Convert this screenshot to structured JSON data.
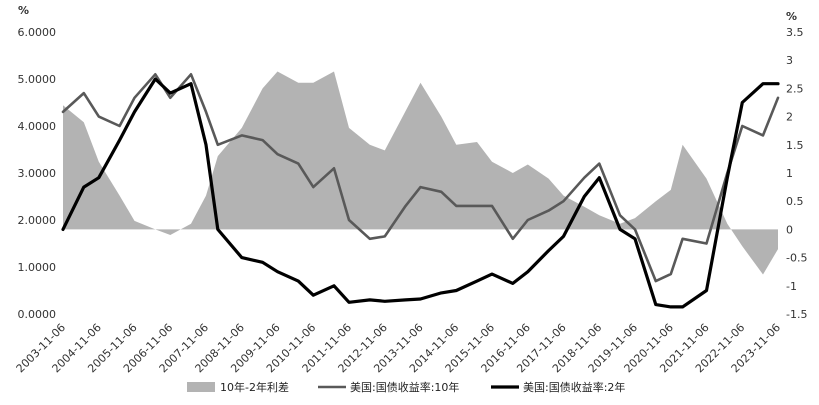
{
  "chart_data": {
    "type": "line",
    "title": "",
    "left_axis": {
      "unit": "%",
      "ylim": [
        0,
        6
      ],
      "ticks": [
        "0.0000",
        "1.0000",
        "2.0000",
        "3.0000",
        "4.0000",
        "5.0000",
        "6.0000"
      ]
    },
    "right_axis": {
      "unit": "%",
      "ylim": [
        -1.5,
        3.5
      ],
      "ticks": [
        "-1.5",
        "-1",
        "-0.5",
        "0",
        "0.5",
        "1",
        "1.5",
        "2",
        "2.5",
        "3",
        "3.5"
      ]
    },
    "x_ticks": [
      "2003-11-06",
      "2004-11-06",
      "2005-11-06",
      "2006-11-06",
      "2007-11-06",
      "2008-11-06",
      "2009-11-06",
      "2010-11-06",
      "2011-11-06",
      "2012-11-06",
      "2013-11-06",
      "2014-11-06",
      "2015-11-06",
      "2016-11-06",
      "2017-11-06",
      "2018-11-06",
      "2019-11-06",
      "2020-11-06",
      "2021-11-06",
      "2022-11-06",
      "2023-11-06"
    ],
    "x_range": [
      "2003-11-06",
      "2023-11-06"
    ],
    "legend_position": "bottom",
    "series": [
      {
        "name": "10年-2年利差",
        "type": "area",
        "axis": "right",
        "color": "#b3b3b3",
        "x": [
          "2003-11-06",
          "2004-06-06",
          "2004-11-06",
          "2005-06-06",
          "2005-11-06",
          "2006-06-06",
          "2006-11-06",
          "2007-06-06",
          "2007-11-06",
          "2008-03-06",
          "2008-11-06",
          "2009-06-06",
          "2009-11-06",
          "2010-06-06",
          "2010-11-06",
          "2011-06-06",
          "2011-11-06",
          "2012-06-06",
          "2012-11-06",
          "2013-06-06",
          "2013-11-06",
          "2014-06-06",
          "2014-11-06",
          "2015-06-06",
          "2015-11-06",
          "2016-06-06",
          "2016-11-06",
          "2017-06-06",
          "2017-11-06",
          "2018-06-06",
          "2018-11-06",
          "2019-06-06",
          "2019-11-06",
          "2020-06-06",
          "2020-11-06",
          "2021-03-06",
          "2021-11-06",
          "2022-06-06",
          "2022-11-06",
          "2023-06-06",
          "2023-11-06"
        ],
        "y": [
          2.2,
          1.9,
          1.2,
          0.6,
          0.15,
          0,
          -0.1,
          0.1,
          0.6,
          1.3,
          1.8,
          2.5,
          2.8,
          2.6,
          2.6,
          2.8,
          1.8,
          1.5,
          1.4,
          2.1,
          2.6,
          2.0,
          1.5,
          1.55,
          1.2,
          1.0,
          1.15,
          0.9,
          0.6,
          0.4,
          0.25,
          0.1,
          0.2,
          0.5,
          0.7,
          1.5,
          0.9,
          0.1,
          -0.3,
          -0.8,
          -0.35
        ]
      },
      {
        "name": "美国:国债收益率:10年",
        "type": "line",
        "axis": "left",
        "color": "#595959",
        "x": [
          "2003-11-06",
          "2004-06-06",
          "2004-11-06",
          "2005-06-06",
          "2005-11-06",
          "2006-06-06",
          "2006-11-06",
          "2007-06-06",
          "2007-11-06",
          "2008-03-06",
          "2008-11-06",
          "2009-06-06",
          "2009-11-06",
          "2010-06-06",
          "2010-11-06",
          "2011-06-06",
          "2011-11-06",
          "2012-06-06",
          "2012-11-06",
          "2013-06-06",
          "2013-11-06",
          "2014-06-06",
          "2014-11-06",
          "2015-06-06",
          "2015-11-06",
          "2016-06-06",
          "2016-11-06",
          "2017-06-06",
          "2017-11-06",
          "2018-06-06",
          "2018-11-06",
          "2019-06-06",
          "2019-11-06",
          "2020-06-06",
          "2020-11-06",
          "2021-03-06",
          "2021-11-06",
          "2022-06-06",
          "2022-11-06",
          "2023-06-06",
          "2023-11-06"
        ],
        "y": [
          4.3,
          4.7,
          4.2,
          4.0,
          4.6,
          5.1,
          4.6,
          5.1,
          4.3,
          3.6,
          3.8,
          3.7,
          3.4,
          3.2,
          2.7,
          3.1,
          2.0,
          1.6,
          1.65,
          2.3,
          2.7,
          2.6,
          2.3,
          2.3,
          2.3,
          1.6,
          2.0,
          2.2,
          2.4,
          2.9,
          3.2,
          2.1,
          1.8,
          0.7,
          0.85,
          1.6,
          1.5,
          3.0,
          4.0,
          3.8,
          4.6
        ]
      },
      {
        "name": "美国:国债收益率:2年",
        "type": "line",
        "axis": "left",
        "color": "#000000",
        "x": [
          "2003-11-06",
          "2004-06-06",
          "2004-11-06",
          "2005-06-06",
          "2005-11-06",
          "2006-06-06",
          "2006-11-06",
          "2007-06-06",
          "2007-11-06",
          "2008-03-06",
          "2008-11-06",
          "2009-06-06",
          "2009-11-06",
          "2010-06-06",
          "2010-11-06",
          "2011-06-06",
          "2011-11-06",
          "2012-06-06",
          "2012-11-06",
          "2013-06-06",
          "2013-11-06",
          "2014-06-06",
          "2014-11-06",
          "2015-06-06",
          "2015-11-06",
          "2016-06-06",
          "2016-11-06",
          "2017-06-06",
          "2017-11-06",
          "2018-06-06",
          "2018-11-06",
          "2019-06-06",
          "2019-11-06",
          "2020-06-06",
          "2020-11-06",
          "2021-03-06",
          "2021-11-06",
          "2022-06-06",
          "2022-11-06",
          "2023-06-06",
          "2023-11-06"
        ],
        "y": [
          1.8,
          2.7,
          2.9,
          3.7,
          4.3,
          5.0,
          4.7,
          4.9,
          3.6,
          1.8,
          1.2,
          1.1,
          0.9,
          0.7,
          0.4,
          0.6,
          0.25,
          0.3,
          0.27,
          0.3,
          0.32,
          0.45,
          0.5,
          0.7,
          0.85,
          0.65,
          0.9,
          1.35,
          1.65,
          2.5,
          2.9,
          1.8,
          1.6,
          0.2,
          0.15,
          0.15,
          0.5,
          2.9,
          4.5,
          4.9,
          4.9
        ]
      }
    ]
  }
}
